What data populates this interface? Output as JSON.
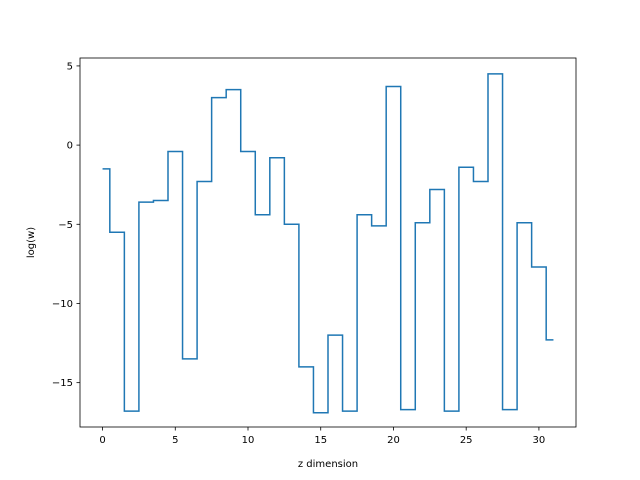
{
  "chart_data": {
    "type": "line",
    "drawstyle": "steps-mid",
    "title": "",
    "xlabel": "z dimension",
    "ylabel": "log(w)",
    "xlim": [
      -1.55,
      32.55
    ],
    "ylim": [
      -17.8,
      5.5
    ],
    "grid": false,
    "legend": "none",
    "xticks": [
      0,
      5,
      10,
      15,
      20,
      25,
      30
    ],
    "xtick_labels": [
      "0",
      "5",
      "10",
      "15",
      "20",
      "25",
      "30"
    ],
    "yticks": [
      5,
      0,
      -5,
      -10,
      -15
    ],
    "ytick_labels": [
      "5",
      "0",
      "−5",
      "−10",
      "−15"
    ],
    "series": [
      {
        "color": "#1f77b4",
        "x": [
          0,
          1,
          2,
          3,
          4,
          5,
          6,
          7,
          8,
          9,
          10,
          11,
          12,
          13,
          14,
          15,
          16,
          17,
          18,
          19,
          20,
          21,
          22,
          23,
          24,
          25,
          26,
          27,
          28,
          29,
          30,
          31
        ],
        "y": [
          -1.5,
          -5.5,
          -16.8,
          -3.6,
          -3.5,
          -0.4,
          -13.5,
          -2.3,
          3.0,
          3.5,
          -0.4,
          -4.4,
          -0.8,
          -5.0,
          -14.0,
          -16.9,
          -12.0,
          -16.8,
          -4.4,
          -5.1,
          3.7,
          -16.7,
          -4.9,
          -2.8,
          -16.8,
          -1.4,
          -2.3,
          4.5,
          -16.7,
          -4.9,
          -7.7,
          -12.3
        ]
      }
    ]
  }
}
